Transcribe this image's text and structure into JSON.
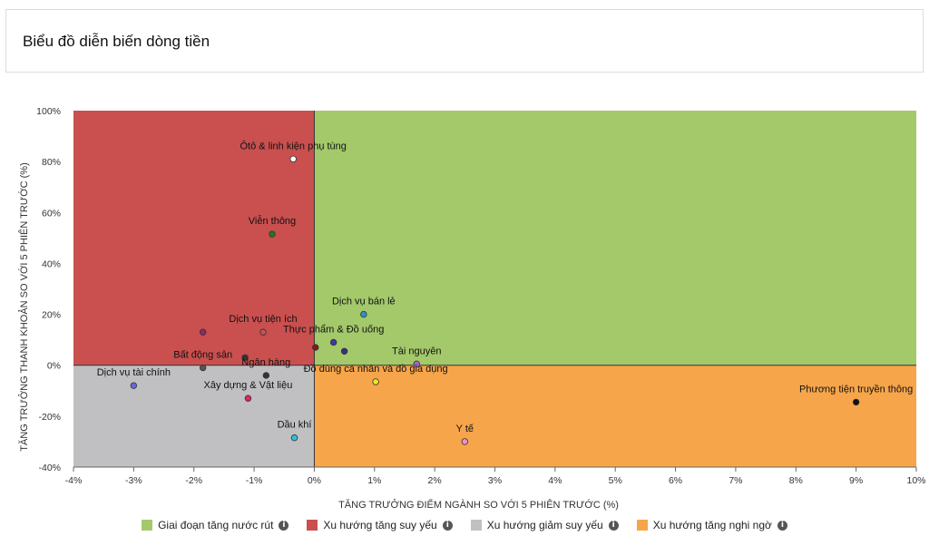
{
  "page": {
    "title": "Biểu đồ diễn biến dòng tiền"
  },
  "colors": {
    "q1": "#a3c96a",
    "q2": "#c9504f",
    "q3": "#c0c0c3",
    "q4": "#f7a54a"
  },
  "chart_data": {
    "type": "scatter",
    "xlabel": "TĂNG TRƯỞNG ĐIỂM NGÀNH SO VỚI 5 PHIÊN TRƯỚC (%)",
    "ylabel": "TĂNG TRƯỞNG THANH KHOẢN SO VỚI 5 PHIÊN TRƯỚC (%)",
    "xlim": [
      -4,
      10
    ],
    "ylim": [
      -40,
      100
    ],
    "xticks": [
      -4,
      -3,
      -2,
      -1,
      0,
      1,
      2,
      3,
      4,
      5,
      6,
      7,
      8,
      9,
      10
    ],
    "yticks": [
      -40,
      -20,
      0,
      20,
      40,
      60,
      80,
      100
    ],
    "points": [
      {
        "label": "Ôtô & linh kiện phụ tùng",
        "x": -0.35,
        "y": 81,
        "color": "#ffffff",
        "label_pos": "above"
      },
      {
        "label": "Viễn thông",
        "x": -0.7,
        "y": 51.5,
        "color": "#1f7a1f",
        "label_pos": "above"
      },
      {
        "label": "Dịch vụ bán lẻ",
        "x": 0.82,
        "y": 20,
        "color": "#2f8fd1",
        "label_pos": "above"
      },
      {
        "label": "Dịch vụ tiện ích",
        "x": -0.85,
        "y": 13,
        "color": "#c9504f",
        "label_pos": "above"
      },
      {
        "label": "",
        "x": -1.85,
        "y": 13,
        "color": "#8a2a6a",
        "label_pos": "none"
      },
      {
        "label": "Thực phẩm & Đồ uống",
        "x": 0.32,
        "y": 9,
        "color": "#3a3aa0",
        "label_pos": "above"
      },
      {
        "label": "",
        "x": 0.5,
        "y": 5.5,
        "color": "#3b2d80",
        "label_pos": "none"
      },
      {
        "label": "",
        "x": 0.02,
        "y": 7,
        "color": "#7a1d1d",
        "label_pos": "none"
      },
      {
        "label": "Tài nguyên",
        "x": 1.7,
        "y": 0.5,
        "color": "#a067c9",
        "label_pos": "above"
      },
      {
        "label": "Bất động sản",
        "x": -1.85,
        "y": -1,
        "color": "#555555",
        "label_pos": "above"
      },
      {
        "label": "",
        "x": -1.15,
        "y": 3,
        "color": "#333333",
        "label_pos": "none"
      },
      {
        "label": "Ngân hàng",
        "x": -0.8,
        "y": -4,
        "color": "#333333",
        "label_pos": "above"
      },
      {
        "label": "Đồ dùng cá nhân và đồ gia dụng",
        "x": 1.02,
        "y": -6.5,
        "color": "#e6e62a",
        "label_pos": "above"
      },
      {
        "label": "Dịch vụ tài chính",
        "x": -3.0,
        "y": -8,
        "color": "#6666e0",
        "label_pos": "above"
      },
      {
        "label": "Xây dựng & Vật liệu",
        "x": -1.1,
        "y": -13,
        "color": "#e0265a",
        "label_pos": "above"
      },
      {
        "label": "Dầu khí",
        "x": -0.33,
        "y": -28.5,
        "color": "#30c0e0",
        "label_pos": "above"
      },
      {
        "label": "Y tế",
        "x": 2.5,
        "y": -30,
        "color": "#f090d0",
        "label_pos": "above"
      },
      {
        "label": "Phương tiện truyền thông",
        "x": 9.0,
        "y": -14.5,
        "color": "#111111",
        "label_pos": "above"
      }
    ]
  },
  "legend": [
    {
      "label": "Giai đoạn tăng nước rút",
      "color": "#a3c96a"
    },
    {
      "label": "Xu hướng tăng suy yếu",
      "color": "#c9504f"
    },
    {
      "label": "Xu hướng giảm suy yếu",
      "color": "#c0c0c3"
    },
    {
      "label": "Xu hướng tăng nghi ngờ",
      "color": "#f7a54a"
    }
  ]
}
